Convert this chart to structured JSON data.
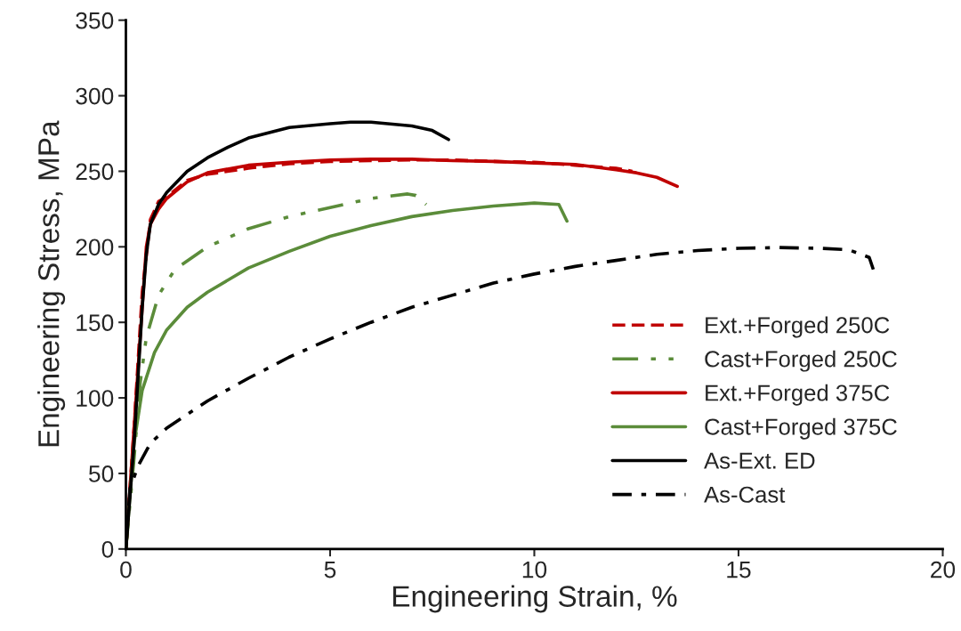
{
  "chart_data": {
    "type": "line",
    "xlabel": "Engineering Strain, %",
    "ylabel": "Engineering Stress, MPa",
    "xlim": [
      0,
      20
    ],
    "xticks": [
      0,
      5,
      10,
      15,
      20
    ],
    "ylim": [
      0,
      350
    ],
    "yticks": [
      0,
      50,
      100,
      150,
      200,
      250,
      300,
      350
    ],
    "grid": false,
    "legend": "lower right",
    "marker": "none",
    "series": [
      {
        "name": "Ext.+Forged 250C",
        "color": "#c00000",
        "line_style": "dashed",
        "x": [
          0,
          0.2,
          0.4,
          0.6,
          0.8,
          1,
          1.5,
          2,
          3,
          4,
          5,
          6,
          7,
          8,
          9,
          10,
          11,
          12,
          12.4
        ],
        "values": [
          0,
          80,
          170,
          218,
          230,
          233,
          244,
          248,
          252,
          255,
          256.5,
          257,
          257.5,
          257.5,
          256.5,
          256,
          254,
          252,
          250
        ]
      },
      {
        "name": "Cast+Forged 250C",
        "color": "#5b8c3a",
        "line_style": "dashdotdot",
        "x": [
          0,
          0.2,
          0.35,
          0.5,
          0.8,
          1.2,
          2,
          3,
          4,
          5,
          6,
          6.9,
          7.1,
          7.35
        ],
        "values": [
          0,
          60,
          110,
          140,
          168,
          185,
          200,
          212,
          220,
          226,
          232,
          235,
          234,
          228
        ]
      },
      {
        "name": "Ext.+Forged 375C",
        "color": "#c00000",
        "line_style": "solid",
        "x": [
          0,
          0.2,
          0.4,
          0.5,
          0.6,
          0.8,
          1,
          1.5,
          2,
          3,
          4,
          5,
          6,
          7,
          8,
          9,
          10,
          11,
          12,
          12.5,
          13,
          13.5
        ],
        "values": [
          0,
          80,
          160,
          200,
          215,
          225,
          232,
          243,
          249,
          254,
          256,
          257.5,
          258,
          258,
          257,
          256.5,
          255.5,
          254.5,
          251,
          249,
          246,
          240
        ]
      },
      {
        "name": "Cast+Forged 375C",
        "color": "#5b8c3a",
        "line_style": "solid",
        "x": [
          0,
          0.2,
          0.4,
          0.7,
          1,
          1.5,
          2,
          3,
          4,
          5,
          6,
          7,
          8,
          9,
          10,
          10.6,
          10.8
        ],
        "values": [
          0,
          70,
          105,
          130,
          145,
          160,
          170,
          186,
          197,
          207,
          214,
          220,
          224,
          227,
          229,
          228,
          217
        ]
      },
      {
        "name": "As-Ext. ED",
        "color": "#000000",
        "line_style": "solid",
        "x": [
          0,
          0.2,
          0.4,
          0.5,
          0.6,
          0.8,
          1,
          1.5,
          2,
          2.5,
          3,
          4,
          5,
          5.5,
          6,
          7,
          7.5,
          7.9
        ],
        "values": [
          0,
          70,
          160,
          195,
          215,
          228,
          236,
          250,
          259,
          266,
          272,
          279,
          281.5,
          282.5,
          282.5,
          280,
          277,
          271
        ]
      },
      {
        "name": "As-Cast",
        "color": "#000000",
        "line_style": "dashdot",
        "x": [
          0,
          0.1,
          0.3,
          0.6,
          1,
          2,
          3,
          4,
          5,
          6,
          7,
          8,
          9,
          10,
          11,
          12,
          13,
          14,
          15,
          16,
          17,
          17.7,
          18.2,
          18.3
        ],
        "values": [
          0,
          40,
          55,
          70,
          80,
          98,
          113,
          127,
          139,
          150,
          160,
          168,
          176,
          182,
          187,
          191,
          195,
          197.5,
          199,
          199.5,
          199,
          198,
          193,
          185
        ]
      }
    ]
  }
}
